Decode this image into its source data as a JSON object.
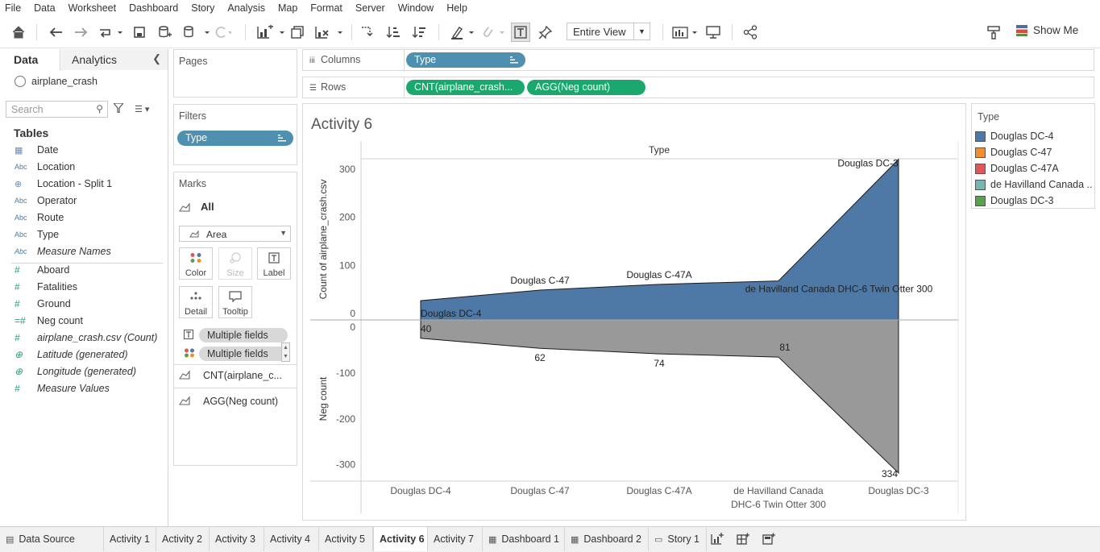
{
  "menu": [
    "File",
    "Data",
    "Worksheet",
    "Dashboard",
    "Story",
    "Analysis",
    "Map",
    "Format",
    "Server",
    "Window",
    "Help"
  ],
  "toolbar": {
    "fit_value": "Entire View",
    "show_me": "Show Me"
  },
  "data_pane": {
    "tabs": {
      "data": "Data",
      "analytics": "Analytics"
    },
    "datasource": "airplane_crash",
    "search_placeholder": "Search",
    "tables_heading": "Tables",
    "fields": [
      {
        "type": "date",
        "name": "Date"
      },
      {
        "type": "Abc",
        "name": "Location"
      },
      {
        "type": "geo",
        "name": "Location - Split 1"
      },
      {
        "type": "Abc",
        "name": "Operator"
      },
      {
        "type": "Abc",
        "name": "Route"
      },
      {
        "type": "Abc",
        "name": "Type"
      },
      {
        "type": "Abc",
        "name": "Measure Names"
      },
      {
        "type": "#",
        "name": "Aboard"
      },
      {
        "type": "#",
        "name": "Fatalities"
      },
      {
        "type": "#",
        "name": "Ground"
      },
      {
        "type": "calc#",
        "name": "Neg count"
      },
      {
        "type": "#",
        "name": "airplane_crash.csv (Count)"
      },
      {
        "type": "globe",
        "name": "Latitude (generated)"
      },
      {
        "type": "globe",
        "name": "Longitude (generated)"
      },
      {
        "type": "#",
        "name": "Measure Values"
      }
    ]
  },
  "cards": {
    "pages": "Pages",
    "filters": "Filters",
    "filter_pill": "Type",
    "marks": "Marks",
    "marks_all": "All",
    "mark_type": "Area",
    "buttons": {
      "color": "Color",
      "size": "Size",
      "label": "Label",
      "detail": "Detail",
      "tooltip": "Tooltip"
    },
    "mark_fields": [
      "Multiple fields",
      "Multiple fields"
    ],
    "mark_rows": [
      "CNT(airplane_c...",
      "AGG(Neg count)"
    ]
  },
  "shelves": {
    "columns_label": "Columns",
    "rows_label": "Rows",
    "columns_pill": "Type",
    "rows_pills": [
      "CNT(airplane_crash...",
      "AGG(Neg count)"
    ]
  },
  "view": {
    "title": "Activity 6"
  },
  "legend": {
    "title": "Type",
    "items": [
      {
        "label": "Douglas DC-4",
        "color": "#4e79a7"
      },
      {
        "label": "Douglas C-47",
        "color": "#f28e2b"
      },
      {
        "label": "Douglas C-47A",
        "color": "#e15759"
      },
      {
        "label": "de Havilland Canada ..",
        "color": "#76b7b2"
      },
      {
        "label": "Douglas DC-3",
        "color": "#59a14f"
      }
    ]
  },
  "chart_data": {
    "type": "area",
    "header": "Type",
    "categories": [
      "Douglas DC-4",
      "Douglas C-47",
      "Douglas C-47A",
      "de Havilland Canada DHC-6 Twin Otter 300",
      "Douglas DC-3"
    ],
    "category_labels": [
      [
        "Douglas DC-4"
      ],
      [
        "Douglas C-47"
      ],
      [
        "Douglas C-47A"
      ],
      [
        "de Havilland Canada",
        "DHC-6 Twin Otter 300"
      ],
      [
        "Douglas DC-3"
      ]
    ],
    "series": [
      {
        "name": "",
        "values": [
          40,
          62,
          74,
          81,
          334
        ],
        "color": "#4e79a7"
      },
      {
        "name": "",
        "values": [
          -40,
          -62,
          -74,
          -81,
          -334
        ],
        "color": "#999999"
      }
    ],
    "top_panel": {
      "ylabel": "Count of airplane_crash.csv",
      "ylim": [
        0,
        330
      ],
      "ticks": [
        0,
        100,
        200,
        300
      ]
    },
    "bottom_panel": {
      "ylabel": "Neg count",
      "ylim": [
        -334,
        0
      ],
      "ticks": [
        0,
        -100,
        -200,
        -300
      ]
    },
    "top_labels": [
      "Douglas DC-4",
      "Douglas C-47",
      "Douglas C-47A",
      "de Havilland Canada DHC-6 Twin Otter 300",
      "Douglas DC-3"
    ],
    "bottom_labels": [
      "40",
      "62",
      "74",
      "81",
      "334"
    ]
  },
  "bottom_tabs": [
    {
      "label": "Data Source",
      "icon": "db"
    },
    {
      "label": "Activity 1"
    },
    {
      "label": "Activity 2"
    },
    {
      "label": "Activity 3"
    },
    {
      "label": "Activity 4"
    },
    {
      "label": "Activity 5"
    },
    {
      "label": "Activity 6",
      "active": true
    },
    {
      "label": "Activity 7"
    },
    {
      "label": "Dashboard 1",
      "icon": "grid"
    },
    {
      "label": "Dashboard 2",
      "icon": "grid"
    },
    {
      "label": "Story 1",
      "icon": "story"
    }
  ]
}
